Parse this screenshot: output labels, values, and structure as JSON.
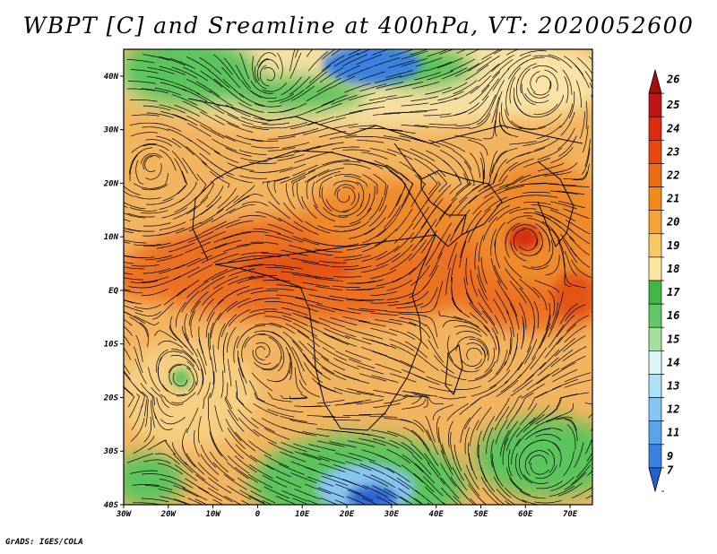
{
  "title": "WBPT [C] and Sreamline at 400hPa, VT: 2020052600",
  "footer": "GrADS: IGES/COLA",
  "map": {
    "field": "WBPT [C]",
    "overlay": "Streamline",
    "level": "400hPa",
    "valid_time": "2020052600",
    "lon_range": [
      -30,
      75
    ],
    "lat_range": [
      -40,
      45
    ],
    "lat_labels": [
      {
        "lat": 40,
        "text": "40N"
      },
      {
        "lat": 30,
        "text": "30N"
      },
      {
        "lat": 20,
        "text": "20N"
      },
      {
        "lat": 10,
        "text": "10N"
      },
      {
        "lat": 0,
        "text": "EQ"
      },
      {
        "lat": -10,
        "text": "10S"
      },
      {
        "lat": -20,
        "text": "20S"
      },
      {
        "lat": -30,
        "text": "30S"
      },
      {
        "lat": -40,
        "text": "40S"
      }
    ],
    "lon_labels": [
      {
        "lon": -30,
        "text": "30W"
      },
      {
        "lon": -20,
        "text": "20W"
      },
      {
        "lon": -10,
        "text": "10W"
      },
      {
        "lon": 0,
        "text": "0"
      },
      {
        "lon": 10,
        "text": "10E"
      },
      {
        "lon": 20,
        "text": "20E"
      },
      {
        "lon": 30,
        "text": "30E"
      },
      {
        "lon": 40,
        "text": "40E"
      },
      {
        "lon": 50,
        "text": "50E"
      },
      {
        "lon": 60,
        "text": "60E"
      },
      {
        "lon": 70,
        "text": "70E"
      }
    ]
  },
  "colorbar": {
    "labels": [
      "26",
      "25",
      "24",
      "23",
      "22",
      "21",
      "20",
      "19",
      "18",
      "17",
      "16",
      "15",
      "14",
      "13",
      "12",
      "11",
      "9",
      "7"
    ],
    "colors": [
      "#a50f0f",
      "#c01414",
      "#d92b0f",
      "#e8480e",
      "#ef6a14",
      "#f18a1b",
      "#f3a534",
      "#f7c866",
      "#fbe7a0",
      "#3fb846",
      "#62c865",
      "#a6e0a0",
      "#dff5f8",
      "#aee0f7",
      "#86c6f2",
      "#5aa5ea",
      "#3a82e0",
      "#2560d1"
    ]
  }
}
